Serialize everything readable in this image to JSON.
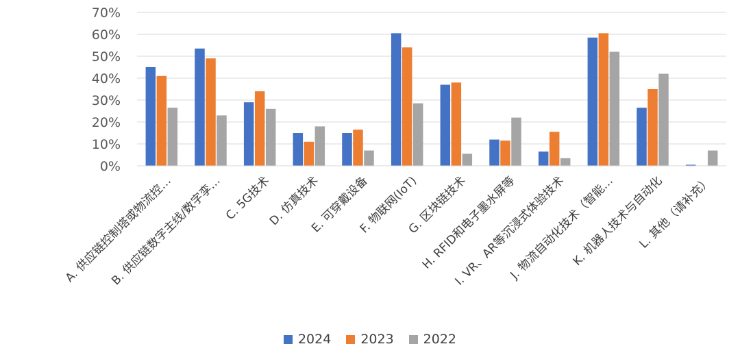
{
  "chart_data": {
    "type": "bar",
    "categories": [
      "A. 供应链控制塔或物流控…",
      "B. 供应链数字主线/数字孪…",
      "C. 5G技术",
      "D. 仿真技术",
      "E. 可穿戴设备",
      "F. 物联网(IoT)",
      "G. 区块链技术",
      "H. RFID和电子墨水屏等",
      "I. VR、AR等沉浸式体验技术",
      "J. 物流自动化技术（智能…",
      "K. 机器人技术与自动化",
      "L. 其他（请补充）"
    ],
    "series": [
      {
        "name": "2024",
        "color": "#4472C4",
        "values": [
          45,
          53.5,
          29,
          15,
          15,
          60.5,
          37,
          12,
          6.5,
          58.5,
          26.5,
          0.5
        ]
      },
      {
        "name": "2023",
        "color": "#ED7D31",
        "values": [
          41,
          49,
          34,
          11,
          16.5,
          54,
          38,
          11.5,
          15.5,
          60.5,
          35,
          0
        ]
      },
      {
        "name": "2022",
        "color": "#A5A5A5",
        "values": [
          26.5,
          23,
          26,
          18,
          7,
          28.5,
          5.5,
          22,
          3.5,
          52,
          42,
          7
        ]
      }
    ],
    "y_ticks": [
      "0%",
      "10%",
      "20%",
      "30%",
      "40%",
      "50%",
      "60%",
      "70%"
    ],
    "ylim": [
      0,
      70
    ],
    "grid": true,
    "legend_position": "bottom"
  }
}
